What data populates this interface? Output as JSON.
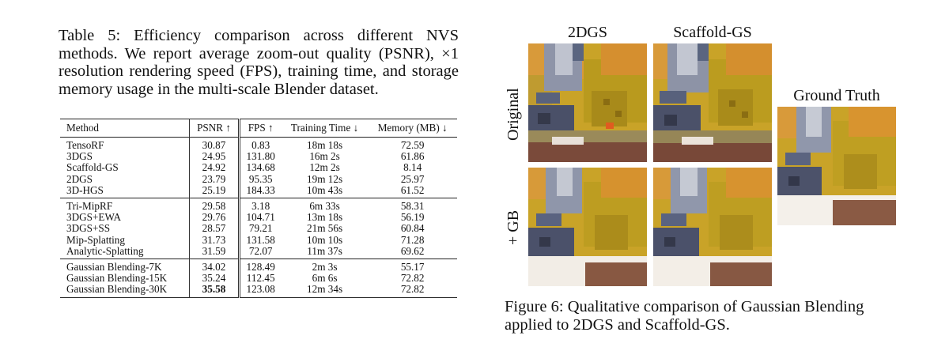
{
  "table_caption": "Table 5: Efficiency comparison across different NVS methods. We report average zoom-out quality (PSNR), ×1 resolution rendering speed (FPS), training time, and storage memory usage in the multi-scale Blender dataset.",
  "table": {
    "headers": [
      "Method",
      "PSNR ↑",
      "FPS ↑",
      "Training Time ↓",
      "Memory (MB) ↓"
    ],
    "groups": [
      [
        [
          "TensoRF",
          "30.87",
          "0.83",
          "18m 18s",
          "72.59"
        ],
        [
          "3DGS",
          "24.95",
          "131.80",
          "16m 2s",
          "61.86"
        ],
        [
          "Scaffold-GS",
          "24.92",
          "134.68",
          "12m 2s",
          "8.14"
        ],
        [
          "2DGS",
          "23.79",
          "95.35",
          "19m 12s",
          "25.97"
        ],
        [
          "3D-HGS",
          "25.19",
          "184.33",
          "10m 43s",
          "61.52"
        ]
      ],
      [
        [
          "Tri-MipRF",
          "29.58",
          "3.18",
          "6m 33s",
          "58.31"
        ],
        [
          "3DGS+EWA",
          "29.76",
          "104.71",
          "13m 18s",
          "56.19"
        ],
        [
          "3DGS+SS",
          "28.57",
          "79.21",
          "21m 56s",
          "60.84"
        ],
        [
          "Mip-Splatting",
          "31.73",
          "131.58",
          "10m 10s",
          "71.28"
        ],
        [
          "Analytic-Splatting",
          "31.59",
          "72.07",
          "11m 37s",
          "69.62"
        ]
      ],
      [
        [
          "Gaussian Blending-7K",
          "34.02",
          "128.49",
          "2m 3s",
          "55.17"
        ],
        [
          "Gaussian Blending-15K",
          "35.24",
          "112.45",
          "6m 6s",
          "72.82"
        ],
        [
          "Gaussian Blending-30K",
          "35.58",
          "123.08",
          "12m 34s",
          "72.82"
        ]
      ]
    ]
  },
  "figure": {
    "col_labels": [
      "2DGS",
      "Scaffold-GS"
    ],
    "row_labels": [
      "Original",
      "+ GB"
    ],
    "gt_label": "Ground Truth",
    "caption": "Figure 6: Qualitative comparison of Gaussian Blending applied to 2DGS and Scaffold-GS."
  }
}
